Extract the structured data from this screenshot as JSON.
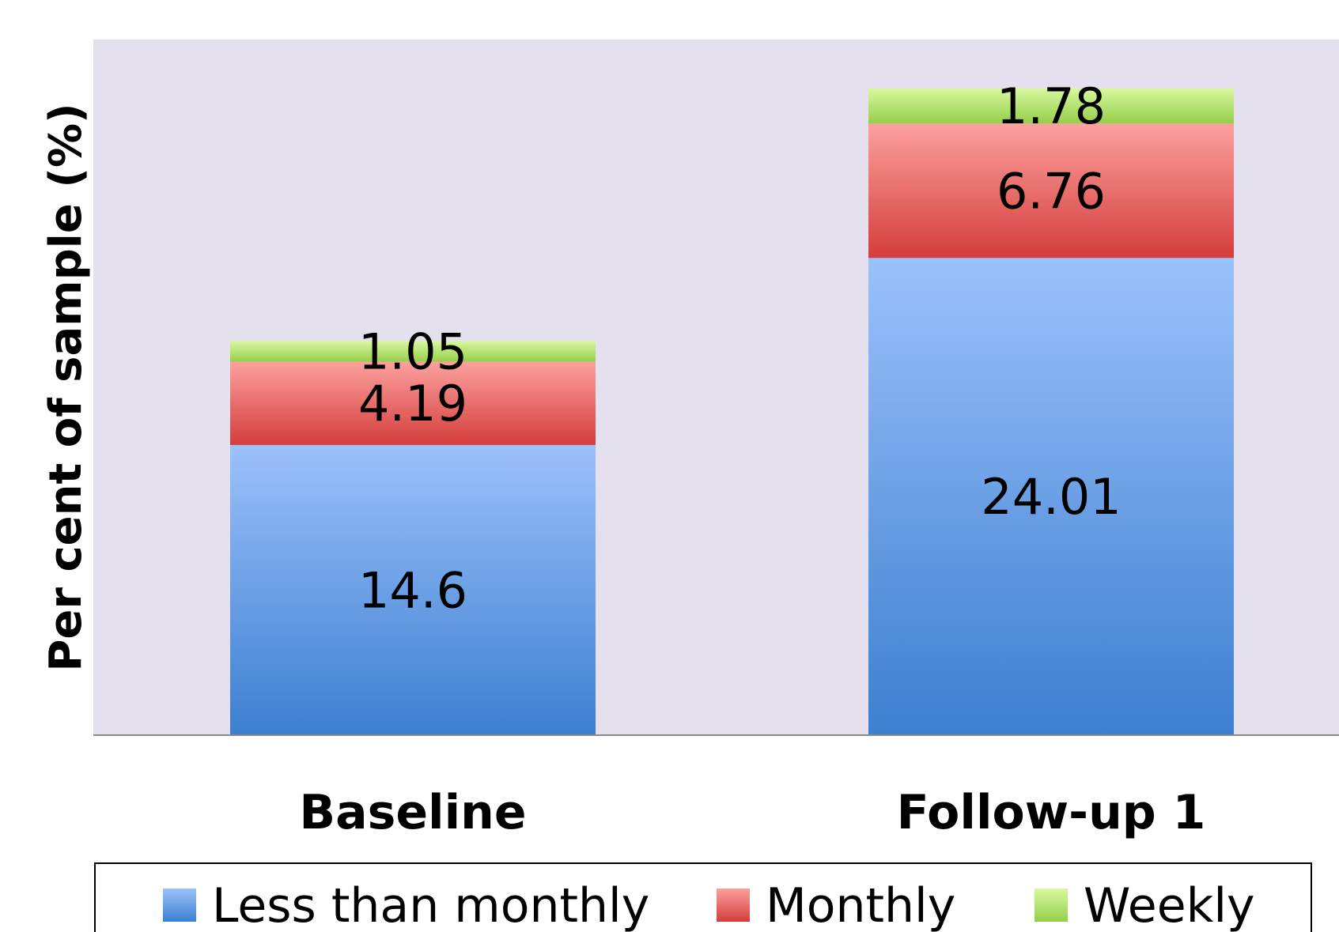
{
  "chart_data": {
    "type": "bar",
    "stacked": true,
    "title": "",
    "xlabel": "",
    "ylabel": "Per cent of sample (%)",
    "categories": [
      "Baseline",
      "Follow-up 1"
    ],
    "series": [
      {
        "name": "Less than monthly",
        "values": [
          14.6,
          24.01
        ],
        "color_top": "#9cc1fb",
        "color_bottom": "#3c7fd0"
      },
      {
        "name": "Monthly",
        "values": [
          4.19,
          6.76
        ],
        "color_top": "#fca19f",
        "color_bottom": "#d43d3b"
      },
      {
        "name": "Weekly",
        "values": [
          1.05,
          1.78
        ],
        "color_top": "#d9f8a0",
        "color_bottom": "#95cf4a"
      }
    ],
    "data_labels": [
      [
        "14.6",
        "24.01"
      ],
      [
        "4.19",
        "6.76"
      ],
      [
        "1.05",
        "1.78"
      ]
    ],
    "ylim": [
      0,
      35
    ],
    "grid": false,
    "plot_background": "#e5e0ee",
    "legend_position": "bottom"
  }
}
